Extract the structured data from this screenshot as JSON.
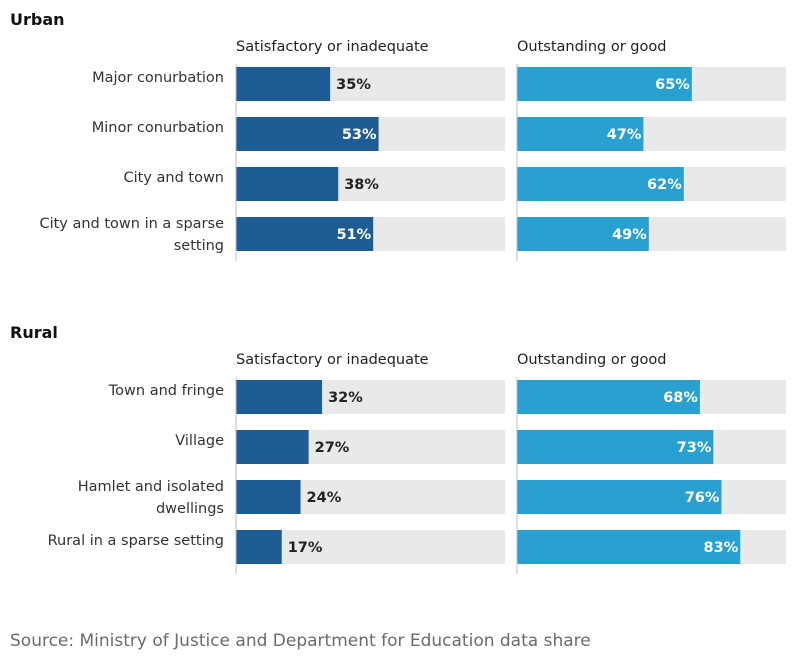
{
  "colors": {
    "satisfactory": "#1f5c94",
    "outstanding": "#29a0cf",
    "track": "#e9e9e9",
    "axis": "#bdbdbd",
    "label_inside": "#ffffff",
    "label_outside": "#222222"
  },
  "chart_data": [
    {
      "type": "bar",
      "title": "Urban",
      "categories": [
        [
          "Major conurbation"
        ],
        [
          "Minor conurbation"
        ],
        [
          "City and town"
        ],
        [
          "City and town in a sparse",
          "setting"
        ]
      ],
      "series": [
        {
          "name": "Satisfactory or inadequate",
          "values": [
            35,
            53,
            38,
            51
          ]
        },
        {
          "name": "Outstanding or good",
          "values": [
            65,
            47,
            62,
            49
          ]
        }
      ],
      "value_suffix": "%",
      "xlim": [
        0,
        100
      ]
    },
    {
      "type": "bar",
      "title": "Rural",
      "categories": [
        [
          "Town and fringe"
        ],
        [
          "Village"
        ],
        [
          "Hamlet and isolated",
          "dwellings"
        ],
        [
          "Rural in a sparse setting"
        ]
      ],
      "series": [
        {
          "name": "Satisfactory or inadequate",
          "values": [
            32,
            27,
            24,
            17
          ]
        },
        {
          "name": "Outstanding or good",
          "values": [
            68,
            73,
            76,
            83
          ]
        }
      ],
      "value_suffix": "%",
      "xlim": [
        0,
        100
      ]
    }
  ],
  "source": "Source: Ministry of Justice and Department for Education data share"
}
